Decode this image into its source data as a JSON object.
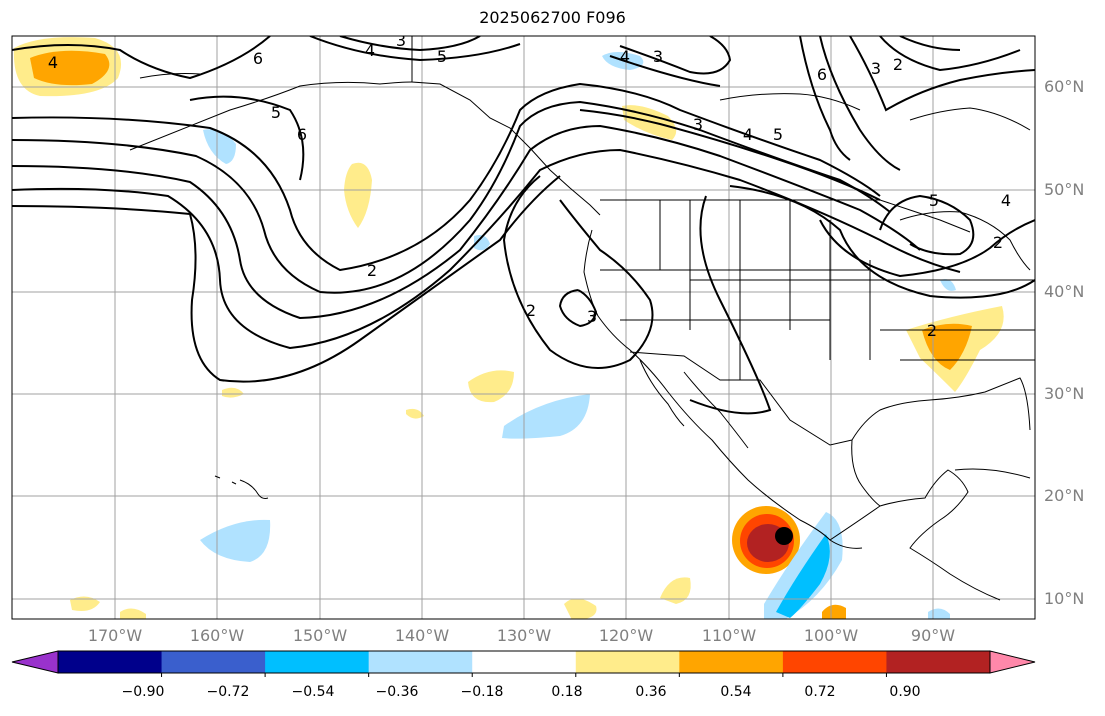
{
  "title": "2025062700 F096",
  "colors": {
    "land_line": "#000000",
    "grid": "#a0a0a0",
    "contour": "#000000",
    "marker": "#000000",
    "axis_label": "#808080"
  },
  "lat_labels": [
    "60°N",
    "50°N",
    "40°N",
    "30°N",
    "20°N",
    "10°N"
  ],
  "lon_labels": [
    "170°W",
    "160°W",
    "150°W",
    "140°W",
    "130°W",
    "120°W",
    "110°W",
    "100°W",
    "90°W"
  ],
  "contour_labels": [
    "4",
    "6",
    "4",
    "3",
    "5",
    "6",
    "5",
    "4",
    "3",
    "2",
    "3",
    "4",
    "5",
    "6",
    "2",
    "2",
    "3",
    "5",
    "4",
    "2",
    "3",
    "2"
  ],
  "colorbar": {
    "colors": [
      "#9932cc",
      "#00008b",
      "#3a5fcd",
      "#00bfff",
      "#b0e2ff",
      "#ffffff",
      "#ffec8b",
      "#ffa500",
      "#ff4500",
      "#b22222",
      "#ff88aa"
    ],
    "tick_labels": [
      "−0.90",
      "−0.72",
      "−0.54",
      "−0.36",
      "−0.18",
      "0.18",
      "0.36",
      "0.54",
      "0.72",
      "0.90"
    ]
  }
}
